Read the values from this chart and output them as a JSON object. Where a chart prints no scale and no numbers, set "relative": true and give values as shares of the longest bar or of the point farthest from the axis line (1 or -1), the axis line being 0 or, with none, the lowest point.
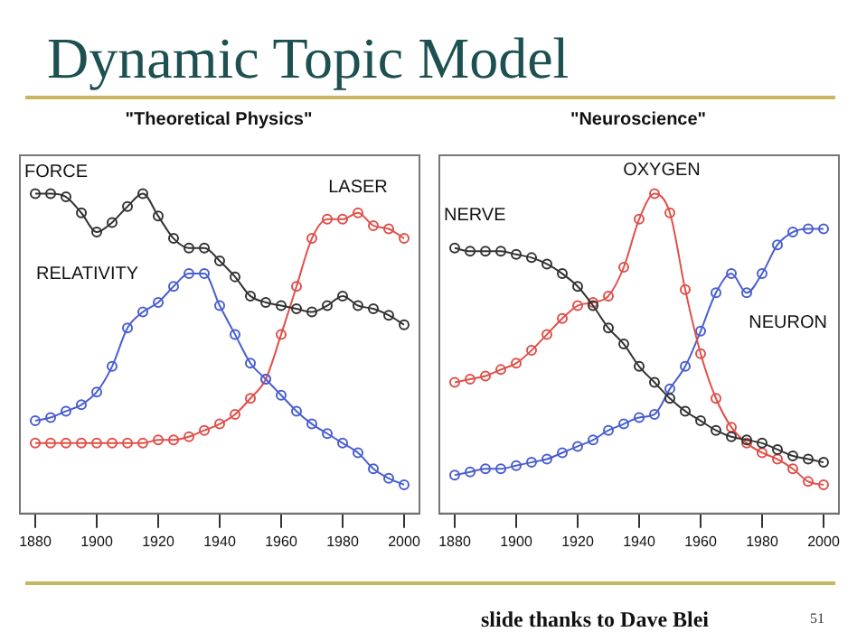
{
  "chart_data": [
    {
      "type": "line",
      "title": "\"Theoretical Physics\"",
      "relative": true,
      "marker": "circle",
      "line_style": "solid",
      "legend": false,
      "x": [
        1880,
        1885,
        1890,
        1895,
        1900,
        1905,
        1910,
        1915,
        1920,
        1925,
        1930,
        1935,
        1940,
        1945,
        1950,
        1955,
        1960,
        1965,
        1970,
        1975,
        1980,
        1985,
        1990,
        1995,
        2000
      ],
      "xlim": [
        1875,
        2005
      ],
      "xticks": [
        1880,
        1900,
        1920,
        1940,
        1960,
        1980,
        2000
      ],
      "annotations": [
        "Dynamic Topic Model"
      ],
      "series": [
        {
          "name": "FORCE",
          "color": "#333333",
          "values": [
            1.0,
            1.0,
            0.99,
            0.94,
            0.88,
            0.91,
            0.96,
            1.0,
            0.93,
            0.86,
            0.83,
            0.83,
            0.79,
            0.74,
            0.68,
            0.66,
            0.65,
            0.64,
            0.63,
            0.65,
            0.68,
            0.65,
            0.64,
            0.62,
            0.59
          ]
        },
        {
          "name": "RELATIVITY",
          "color": "#4a5fd0",
          "values": [
            0.29,
            0.3,
            0.32,
            0.34,
            0.38,
            0.46,
            0.58,
            0.63,
            0.66,
            0.71,
            0.75,
            0.75,
            0.65,
            0.56,
            0.47,
            0.42,
            0.37,
            0.32,
            0.28,
            0.25,
            0.22,
            0.19,
            0.14,
            0.11,
            0.09
          ]
        },
        {
          "name": "LASER",
          "color": "#e0504a",
          "values": [
            0.22,
            0.22,
            0.22,
            0.22,
            0.22,
            0.22,
            0.22,
            0.22,
            0.23,
            0.23,
            0.24,
            0.26,
            0.28,
            0.31,
            0.36,
            0.42,
            0.56,
            0.71,
            0.86,
            0.92,
            0.92,
            0.94,
            0.9,
            0.89,
            0.86
          ]
        }
      ]
    },
    {
      "type": "line",
      "title": "\"Neuroscience\"",
      "relative": true,
      "marker": "circle",
      "line_style": "solid",
      "legend": false,
      "x": [
        1880,
        1885,
        1890,
        1895,
        1900,
        1905,
        1910,
        1915,
        1920,
        1925,
        1930,
        1935,
        1940,
        1945,
        1950,
        1955,
        1960,
        1965,
        1970,
        1975,
        1980,
        1985,
        1990,
        1995,
        2000
      ],
      "xlim": [
        1875,
        2005
      ],
      "xticks": [
        1880,
        1900,
        1920,
        1940,
        1960,
        1980,
        2000
      ],
      "annotations": [
        "slide thanks to Dave Blei",
        "51"
      ],
      "series": [
        {
          "name": "NERVE",
          "color": "#333333",
          "values": [
            0.83,
            0.82,
            0.82,
            0.82,
            0.81,
            0.8,
            0.78,
            0.75,
            0.71,
            0.65,
            0.58,
            0.53,
            0.46,
            0.41,
            0.36,
            0.32,
            0.29,
            0.26,
            0.24,
            0.23,
            0.22,
            0.2,
            0.18,
            0.17,
            0.16
          ]
        },
        {
          "name": "OXYGEN",
          "color": "#e0504a",
          "values": [
            0.41,
            0.42,
            0.43,
            0.45,
            0.47,
            0.51,
            0.56,
            0.61,
            0.65,
            0.66,
            0.68,
            0.77,
            0.92,
            1.0,
            0.94,
            0.7,
            0.5,
            0.36,
            0.27,
            0.22,
            0.19,
            0.17,
            0.14,
            0.1,
            0.09
          ]
        },
        {
          "name": "NEURON",
          "color": "#4a5fd0",
          "values": [
            0.12,
            0.13,
            0.14,
            0.14,
            0.15,
            0.16,
            0.17,
            0.19,
            0.21,
            0.23,
            0.26,
            0.28,
            0.3,
            0.31,
            0.39,
            0.46,
            0.57,
            0.69,
            0.75,
            0.69,
            0.75,
            0.84,
            0.88,
            0.89,
            0.89
          ]
        }
      ]
    }
  ]
}
